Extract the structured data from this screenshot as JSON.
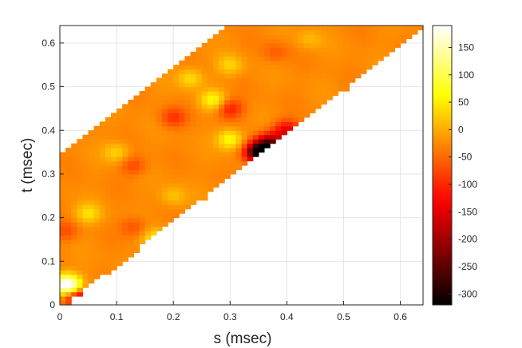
{
  "chart_data": {
    "type": "heatmap",
    "xlabel": "s (msec)",
    "ylabel": "t (msec)",
    "xlim": [
      0,
      0.64
    ],
    "ylim": [
      0,
      0.64
    ],
    "x_ticks": [
      0,
      0.1,
      0.2,
      0.3,
      0.4,
      0.5,
      0.6
    ],
    "y_ticks": [
      0,
      0.1,
      0.2,
      0.3,
      0.4,
      0.5,
      0.6
    ],
    "x_tick_labels": [
      "0",
      "0.1",
      "0.2",
      "0.3",
      "0.4",
      "0.5",
      "0.6"
    ],
    "y_tick_labels": [
      "0",
      "0.1",
      "0.2",
      "0.3",
      "0.4",
      "0.5",
      "0.6"
    ],
    "grid": true,
    "colormap": "hot",
    "colorbar": {
      "range": [
        -320,
        190
      ],
      "ticks": [
        150,
        100,
        50,
        0,
        -50,
        -100,
        -150,
        -200,
        -250,
        -300
      ],
      "tick_labels": [
        "150",
        "100",
        "50",
        "0",
        "-50",
        "-100",
        "-150",
        "-200",
        "-250",
        "-300"
      ]
    },
    "region": {
      "description_of_domain": "values defined for s - 0.01 <= t <= s + 0.345",
      "lower_offset": -0.01,
      "upper_offset": 0.345
    },
    "grid_resolution": 0.01,
    "typical_value": -25,
    "features": [
      {
        "s": 0.35,
        "t": 0.35,
        "value": -320
      },
      {
        "s": 0.37,
        "t": 0.37,
        "value": -230
      },
      {
        "s": 0.4,
        "t": 0.4,
        "value": -150
      },
      {
        "s": 0.03,
        "t": 0.02,
        "value": -200
      },
      {
        "s": 0.01,
        "t": 0.05,
        "value": 130
      },
      {
        "s": 0.02,
        "t": 0.04,
        "value": 110
      },
      {
        "s": 0.3,
        "t": 0.45,
        "value": -110
      },
      {
        "s": 0.2,
        "t": 0.43,
        "value": -90
      },
      {
        "s": 0.27,
        "t": 0.47,
        "value": 60
      },
      {
        "s": 0.3,
        "t": 0.38,
        "value": 70
      },
      {
        "s": 0.13,
        "t": 0.32,
        "value": -75
      },
      {
        "s": 0.05,
        "t": 0.21,
        "value": 40
      },
      {
        "s": 0.17,
        "t": 0.15,
        "value": 60
      },
      {
        "s": 0.13,
        "t": 0.18,
        "value": -70
      },
      {
        "s": 0.01,
        "t": 0.17,
        "value": -70
      },
      {
        "s": 0.38,
        "t": 0.58,
        "value": -60
      },
      {
        "s": 0.3,
        "t": 0.55,
        "value": 30
      },
      {
        "s": 0.23,
        "t": 0.52,
        "value": 40
      },
      {
        "s": 0.1,
        "t": 0.35,
        "value": 30
      },
      {
        "s": 0.2,
        "t": 0.25,
        "value": 20
      },
      {
        "s": 0.44,
        "t": 0.61,
        "value": 10
      }
    ]
  }
}
